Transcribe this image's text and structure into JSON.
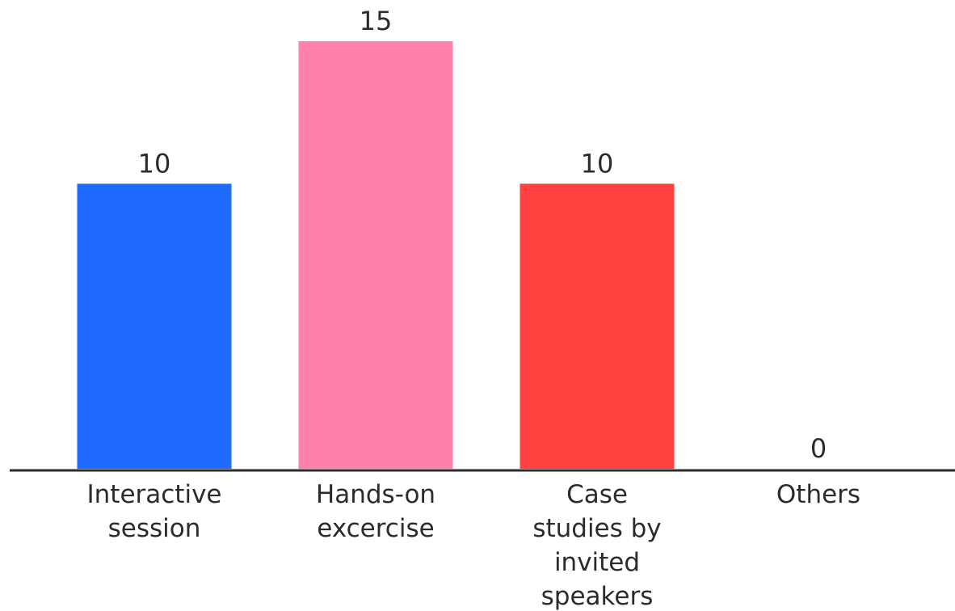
{
  "chart_data": {
    "type": "bar",
    "categories": [
      [
        "Interactive",
        "session"
      ],
      [
        "Hands-on",
        "excercise"
      ],
      [
        "Case",
        "studies by",
        "invited",
        "speakers"
      ],
      [
        "Others"
      ]
    ],
    "values": [
      10,
      15,
      10,
      0
    ],
    "value_labels": [
      "10",
      "15",
      "10",
      "0"
    ],
    "colors": [
      "#1f6bff",
      "#ff80a8",
      "#ff413f",
      "#ff413f"
    ],
    "title": "",
    "xlabel": "",
    "ylabel": "",
    "ylim": [
      0,
      15
    ],
    "grid": false,
    "legend": "none"
  }
}
